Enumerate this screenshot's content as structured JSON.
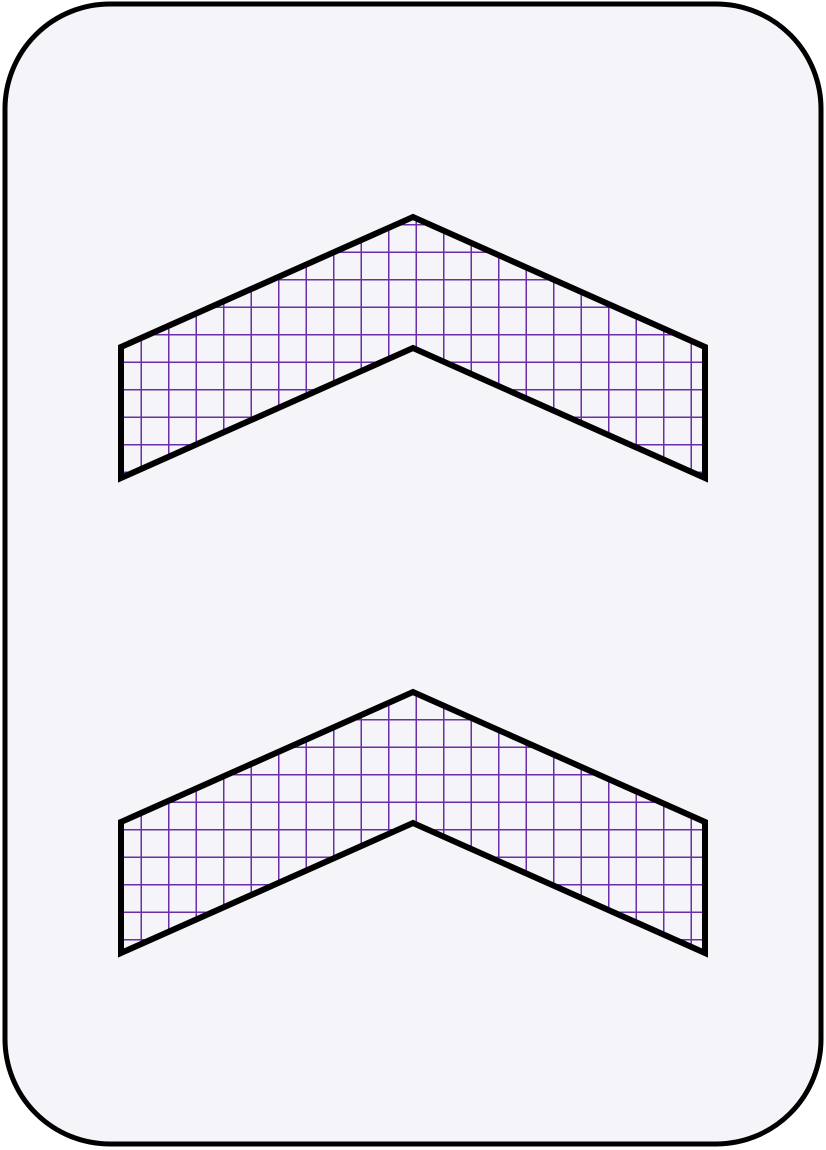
{
  "card": {
    "symbol": "chevron",
    "count": 2,
    "fill_pattern": "grid",
    "pattern_color": "#6a2ea8",
    "outline_color": "#000000",
    "card_background": "#f5f4f9",
    "card_border_color": "#000000"
  },
  "icons": [
    "chevron-up-icon",
    "chevron-up-icon"
  ]
}
